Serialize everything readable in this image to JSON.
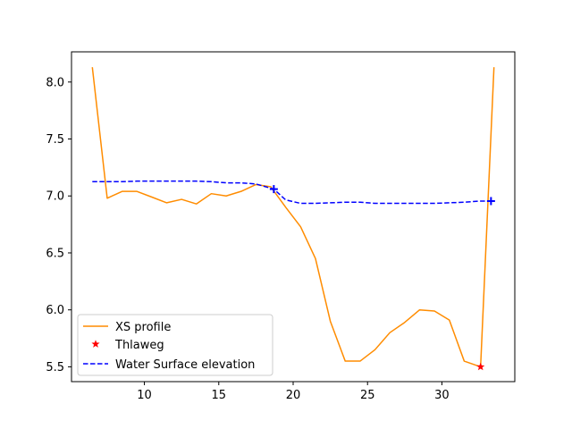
{
  "chart_data": {
    "type": "line",
    "title": "",
    "xlabel": "",
    "ylabel": "",
    "xlim": [
      5.1,
      34.9
    ],
    "ylim": [
      5.37,
      8.265
    ],
    "xticks": [
      10,
      15,
      20,
      25,
      30
    ],
    "yticks": [
      5.5,
      6.0,
      6.5,
      7.0,
      7.5,
      8.0
    ],
    "xtick_labels": [
      "10",
      "15",
      "20",
      "25",
      "30"
    ],
    "ytick_labels": [
      "5.5",
      "6.0",
      "6.5",
      "7.0",
      "7.5",
      "8.0"
    ],
    "grid": false,
    "legend_position": "lower-left",
    "series": [
      {
        "name": "XS profile",
        "style": "line",
        "color": "#ff8c00",
        "x": [
          6.5,
          7.5,
          8.5,
          9.5,
          10.5,
          11.5,
          12.5,
          13.5,
          14.5,
          15.5,
          16.5,
          17.5,
          18.5,
          19.5,
          20.5,
          21.5,
          22.5,
          23.5,
          24.5,
          25.5,
          26.5,
          27.5,
          28.5,
          29.5,
          30.5,
          31.5,
          32.6,
          33.5
        ],
        "y": [
          8.13,
          6.98,
          7.04,
          7.04,
          6.99,
          6.94,
          6.97,
          6.93,
          7.02,
          7.0,
          7.04,
          7.1,
          7.08,
          6.9,
          6.73,
          6.45,
          5.9,
          5.55,
          5.55,
          5.65,
          5.8,
          5.89,
          6.0,
          5.99,
          5.91,
          5.55,
          5.5,
          8.13
        ]
      },
      {
        "name": "Thlaweg",
        "style": "marker",
        "marker": "star",
        "color": "#ff0000",
        "x": [
          32.6
        ],
        "y": [
          5.5
        ]
      },
      {
        "name": "Water Surface elevation",
        "style": "dashed",
        "color": "#0000ff",
        "x": [
          6.5,
          7.5,
          8.5,
          9.5,
          10.5,
          11.5,
          12.5,
          13.5,
          14.5,
          15.5,
          16.5,
          17.5,
          18.7,
          19.5,
          20.5,
          21.5,
          22.5,
          23.5,
          24.5,
          25.5,
          26.5,
          27.5,
          28.5,
          29.5,
          30.5,
          31.5,
          32.5,
          33.3
        ],
        "y": [
          7.125,
          7.125,
          7.125,
          7.13,
          7.13,
          7.13,
          7.13,
          7.13,
          7.125,
          7.115,
          7.115,
          7.105,
          7.06,
          6.965,
          6.935,
          6.935,
          6.94,
          6.945,
          6.945,
          6.935,
          6.935,
          6.935,
          6.935,
          6.935,
          6.94,
          6.945,
          6.955,
          6.955
        ],
        "endpoint_markers": {
          "marker": "plus",
          "x": [
            18.7,
            33.3
          ],
          "y": [
            7.06,
            6.955
          ]
        }
      }
    ]
  }
}
